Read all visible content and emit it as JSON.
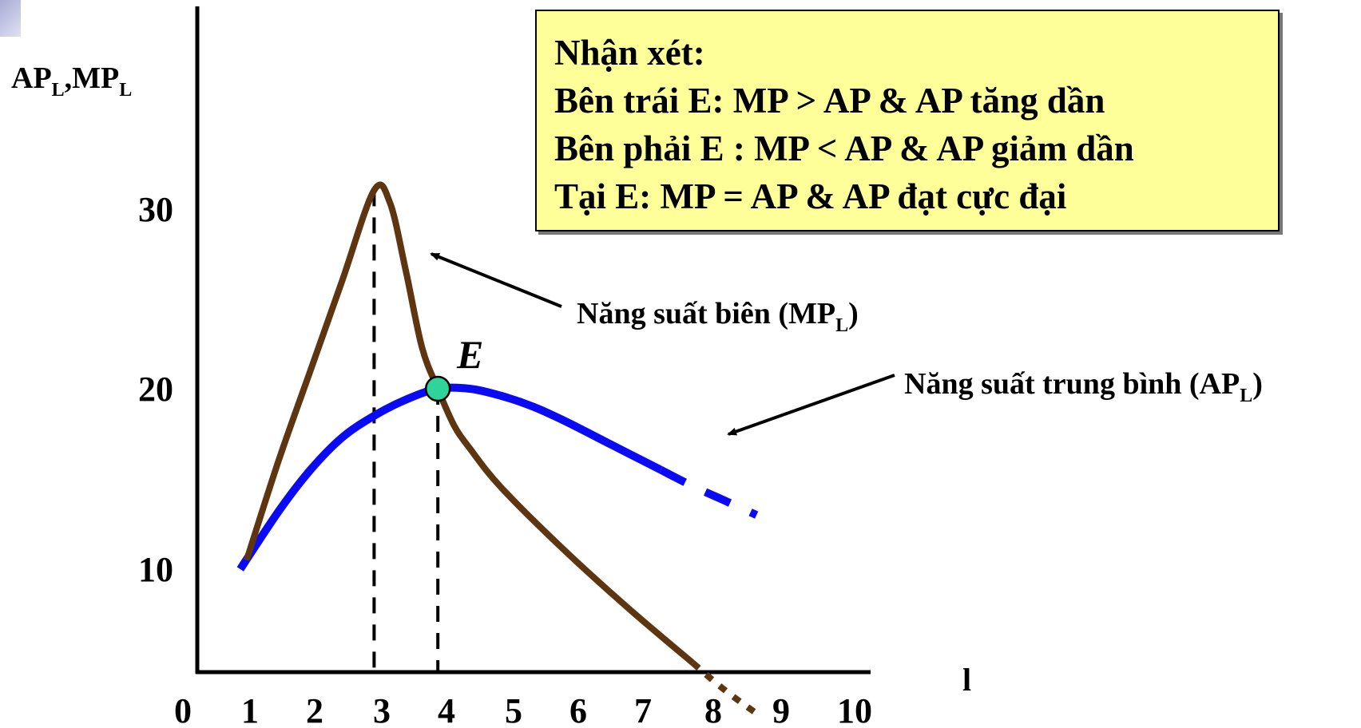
{
  "note": {
    "title": "Nhận xét:",
    "lines": [
      "Bên trái E: MP > AP & AP tăng dần",
      "Bên phải E : MP < AP & AP giảm dần",
      "Tại E: MP = AP & AP đạt cực đại"
    ]
  },
  "colors": {
    "mp": "#5e3511",
    "ap": "#0a0af5",
    "point": "#2ed49a",
    "note_bg": "#ffff99"
  },
  "chart_data": {
    "type": "line",
    "ylabel_main": "AP",
    "ylabel_sub": "L",
    "ylabel_sep": ",",
    "ylabel_main2": "MP",
    "ylabel_sub2": "L",
    "xlabel": "l",
    "x_ticks": [
      "0",
      "1",
      "2",
      "3",
      "4",
      "5",
      "6",
      "7",
      "8",
      "9",
      "10"
    ],
    "y_ticks": [
      "10",
      "20",
      "30"
    ],
    "xlim": [
      0,
      10
    ],
    "ylim": [
      5,
      40
    ],
    "grid": false,
    "point_label": "E",
    "point": {
      "x": 4,
      "y": 20
    },
    "guide_lines_x": [
      3,
      4
    ],
    "series": [
      {
        "name_main": "Năng suất biên (MP",
        "name_sub": "L",
        "name_end": ")",
        "values": [
          [
            1,
            10.5
          ],
          [
            1.5,
            16
          ],
          [
            2,
            21
          ],
          [
            2.5,
            26
          ],
          [
            3,
            31
          ],
          [
            3.25,
            30.3
          ],
          [
            3.5,
            26.5
          ],
          [
            3.75,
            22.3
          ],
          [
            4,
            20
          ],
          [
            4.25,
            18
          ],
          [
            4.5,
            16.7
          ],
          [
            5,
            14.5
          ],
          [
            6,
            11
          ],
          [
            7,
            7.8
          ],
          [
            8,
            4.8
          ]
        ],
        "extension": [
          [
            8,
            4.8
          ],
          [
            8.5,
            3.3
          ],
          [
            9,
            2
          ]
        ]
      },
      {
        "name_main": "Năng suất trung bình (AP",
        "name_sub": "L",
        "name_end": ")",
        "values": [
          [
            0.9,
            10
          ],
          [
            1.5,
            13.2
          ],
          [
            2,
            15.5
          ],
          [
            2.5,
            17.3
          ],
          [
            3,
            18.5
          ],
          [
            3.5,
            19.4
          ],
          [
            4,
            20
          ],
          [
            4.5,
            20
          ],
          [
            5,
            19.6
          ],
          [
            5.5,
            19
          ],
          [
            6,
            18.2
          ],
          [
            6.5,
            17.3
          ],
          [
            7,
            16.4
          ],
          [
            7.5,
            15.5
          ]
        ],
        "extension": [
          [
            7.5,
            15.5
          ],
          [
            8,
            14.6
          ],
          [
            8.5,
            13.8
          ],
          [
            9,
            13
          ]
        ]
      }
    ]
  }
}
